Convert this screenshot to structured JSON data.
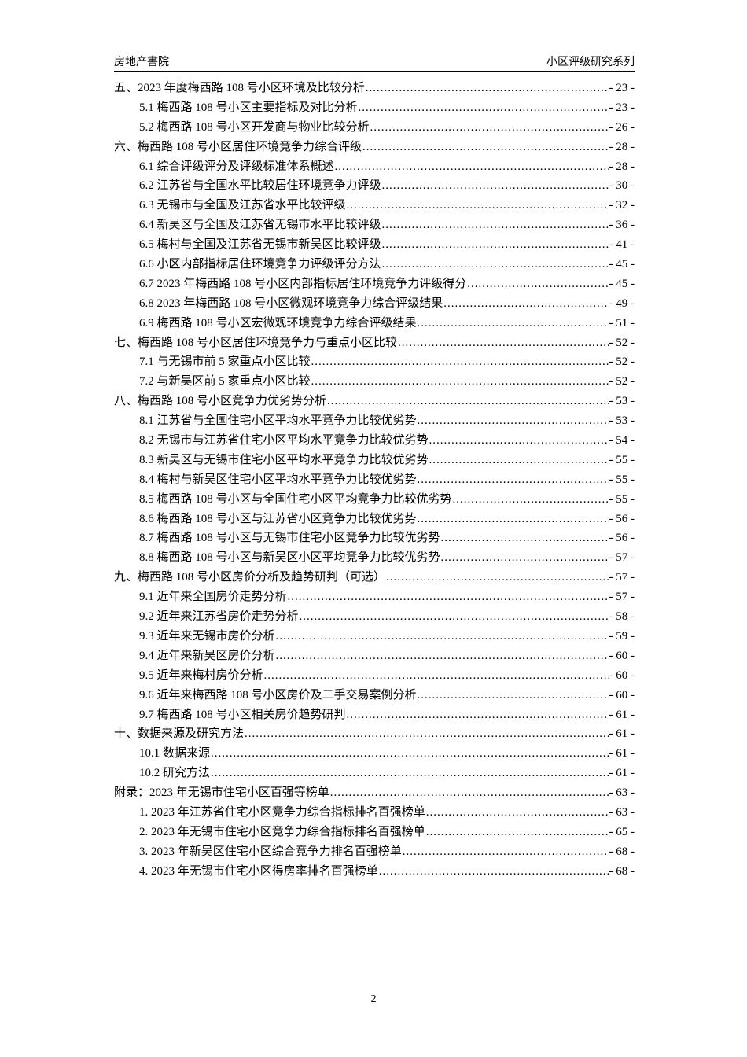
{
  "header": {
    "left": "房地产書院",
    "right": "小区评级研究系列"
  },
  "toc": [
    {
      "level": 1,
      "title": "五、2023 年度梅西路 108 号小区环境及比较分析",
      "page": "- 23 -"
    },
    {
      "level": 2,
      "title": "5.1  梅西路 108 号小区主要指标及对比分析",
      "page": "- 23 -"
    },
    {
      "level": 2,
      "title": "5.2  梅西路 108 号小区开发商与物业比较分析",
      "page": "- 26 -"
    },
    {
      "level": 1,
      "title": "六、梅西路 108 号小区居住环境竞争力综合评级",
      "page": "- 28 -"
    },
    {
      "level": 2,
      "title": "6.1  综合评级评分及评级标准体系概述",
      "page": "- 28 -"
    },
    {
      "level": 2,
      "title": "6.2  江苏省与全国水平比较居住环境竞争力评级",
      "page": "- 30 -"
    },
    {
      "level": 2,
      "title": "6.3  无锡市与全国及江苏省水平比较评级",
      "page": "- 32 -"
    },
    {
      "level": 2,
      "title": "6.4  新吴区与全国及江苏省无锡市水平比较评级",
      "page": "- 36 -"
    },
    {
      "level": 2,
      "title": "6.5  梅村与全国及江苏省无锡市新吴区比较评级",
      "page": "- 41 -"
    },
    {
      "level": 2,
      "title": "6.6  小区内部指标居住环境竞争力评级评分方法",
      "page": "- 45 -"
    },
    {
      "level": 2,
      "title": "6.7  2023 年梅西路 108 号小区内部指标居住环境竞争力评级得分",
      "page": "- 45 -"
    },
    {
      "level": 2,
      "title": "6.8  2023 年梅西路 108 号小区微观环境竞争力综合评级结果",
      "page": "- 49 -"
    },
    {
      "level": 2,
      "title": "6.9  梅西路 108 号小区宏微观环境竞争力综合评级结果",
      "page": "- 51 -"
    },
    {
      "level": 1,
      "title": "七、梅西路 108 号小区居住环境竞争力与重点小区比较",
      "page": "- 52 -"
    },
    {
      "level": 2,
      "title": "7.1  与无锡市前 5 家重点小区比较",
      "page": "- 52 -"
    },
    {
      "level": 2,
      "title": "7.2  与新吴区前 5 家重点小区比较",
      "page": "- 52 -"
    },
    {
      "level": 1,
      "title": "八、梅西路 108 号小区竞争力优劣势分析",
      "page": "- 53 -"
    },
    {
      "level": 2,
      "title": "8.1  江苏省与全国住宅小区平均水平竞争力比较优劣势",
      "page": "- 53 -"
    },
    {
      "level": 2,
      "title": "8.2  无锡市与江苏省住宅小区平均水平竞争力比较优劣势",
      "page": "- 54 -"
    },
    {
      "level": 2,
      "title": "8.3  新吴区与无锡市住宅小区平均水平竞争力比较优劣势",
      "page": "- 55 -"
    },
    {
      "level": 2,
      "title": "8.4  梅村与新吴区住宅小区平均水平竞争力比较优劣势",
      "page": "- 55 -"
    },
    {
      "level": 2,
      "title": "8.5  梅西路 108 号小区与全国住宅小区平均竞争力比较优劣势",
      "page": "- 55 -"
    },
    {
      "level": 2,
      "title": "8.6  梅西路 108 号小区与江苏省小区竞争力比较优劣势",
      "page": "- 56 -"
    },
    {
      "level": 2,
      "title": "8.7  梅西路 108 号小区与无锡市住宅小区竞争力比较优劣势",
      "page": "- 56 -"
    },
    {
      "level": 2,
      "title": "8.8  梅西路 108 号小区与新吴区小区平均竞争力比较优劣势",
      "page": "- 57 -"
    },
    {
      "level": 1,
      "title": "九、梅西路 108 号小区房价分析及趋势研判（可选）",
      "page": "- 57 -"
    },
    {
      "level": 2,
      "title": "9.1  近年来全国房价走势分析",
      "page": "- 57 -"
    },
    {
      "level": 2,
      "title": "9.2  近年来江苏省房价走势分析",
      "page": "- 58 -"
    },
    {
      "level": 2,
      "title": "9.3  近年来无锡市房价分析",
      "page": "- 59 -"
    },
    {
      "level": 2,
      "title": "9.4  近年来新吴区房价分析",
      "page": "- 60 -"
    },
    {
      "level": 2,
      "title": "9.5  近年来梅村房价分析",
      "page": "- 60 -"
    },
    {
      "level": 2,
      "title": "9.6  近年来梅西路 108 号小区房价及二手交易案例分析",
      "page": "- 60 -"
    },
    {
      "level": 2,
      "title": "9.7  梅西路 108 号小区相关房价趋势研判",
      "page": "- 61 -"
    },
    {
      "level": 1,
      "title": "十、数据来源及研究方法",
      "page": "- 61 -"
    },
    {
      "level": 2,
      "title": "10.1  数据来源",
      "page": "- 61 -"
    },
    {
      "level": 2,
      "title": "10.2  研究方法",
      "page": "- 61 -"
    },
    {
      "level": 1,
      "title": "附录：2023 年无锡市住宅小区百强等榜单",
      "page": "- 63 -"
    },
    {
      "level": 2,
      "title": "1.  2023 年江苏省住宅小区竞争力综合指标排名百强榜单",
      "page": "- 63 -"
    },
    {
      "level": 2,
      "title": "2.  2023 年无锡市住宅小区竞争力综合指标排名百强榜单",
      "page": "- 65 -"
    },
    {
      "level": 2,
      "title": "3.  2023 年新吴区住宅小区综合竞争力排名百强榜单",
      "page": "- 68 -"
    },
    {
      "level": 2,
      "title": "4.  2023 年无锡市住宅小区得房率排名百强榜单",
      "page": "- 68 -"
    }
  ],
  "footer": {
    "page_number": "2"
  }
}
